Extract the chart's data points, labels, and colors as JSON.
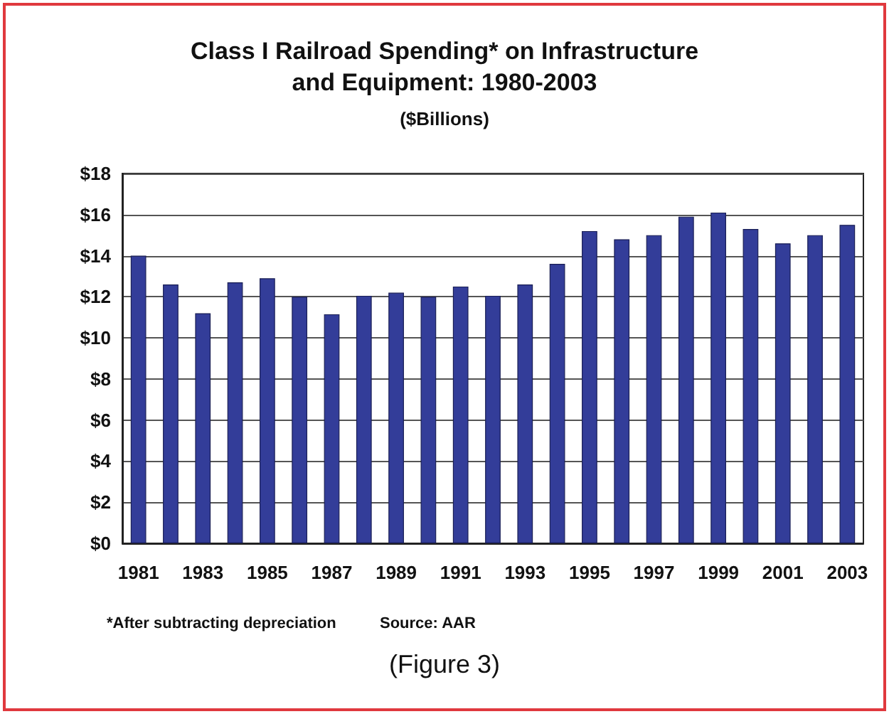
{
  "chart_data": {
    "type": "bar",
    "title": "Class I Railroad Spending* on Infrastructure\nand Equipment: 1980-2003",
    "subtitle": "($Billions)",
    "categories": [
      "1981",
      null,
      "1983",
      null,
      "1985",
      null,
      "1987",
      null,
      "1989",
      null,
      "1991",
      null,
      "1993",
      null,
      "1995",
      null,
      "1997",
      null,
      "1999",
      null,
      "2001",
      null,
      "2003"
    ],
    "values": [
      14.0,
      12.6,
      11.2,
      12.7,
      12.9,
      12.0,
      11.15,
      12.05,
      12.2,
      12.0,
      12.5,
      12.05,
      12.6,
      13.6,
      15.2,
      14.8,
      15.0,
      15.9,
      16.1,
      15.3,
      14.6,
      15.0,
      15.5
    ],
    "color": "#333d99",
    "ylim": [
      0,
      18
    ],
    "yticks": [
      {
        "value": 0,
        "label": "$0"
      },
      {
        "value": 2,
        "label": "$2"
      },
      {
        "value": 4,
        "label": "$4"
      },
      {
        "value": 6,
        "label": "$6"
      },
      {
        "value": 8,
        "label": "$8"
      },
      {
        "value": 10,
        "label": "$10"
      },
      {
        "value": 12,
        "label": "$12"
      },
      {
        "value": 14,
        "label": "$14"
      },
      {
        "value": 16,
        "label": "$16"
      },
      {
        "value": 18,
        "label": "$18"
      }
    ],
    "grid": "y",
    "annotations": [
      "*After subtracting depreciation",
      "Source: AAR",
      "(Figure 3)"
    ]
  }
}
